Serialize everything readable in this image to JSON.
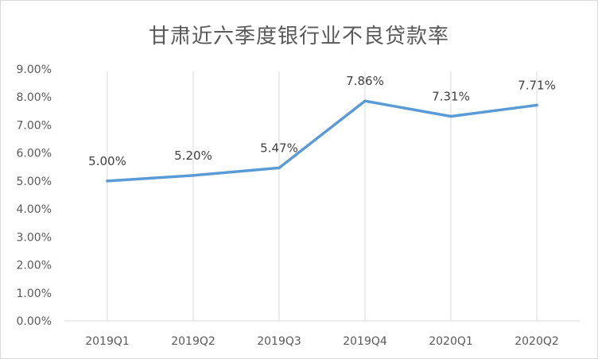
{
  "chart_data": {
    "type": "line",
    "title": "甘肃近六季度银行业不良贷款率",
    "categories": [
      "2019Q1",
      "2019Q2",
      "2019Q3",
      "2019Q4",
      "2020Q1",
      "2020Q2"
    ],
    "series": [
      {
        "values": [
          5.0,
          5.2,
          5.47,
          7.86,
          7.31,
          7.71
        ],
        "labels": [
          "5.00%",
          "5.20%",
          "5.47%",
          "7.86%",
          "7.31%",
          "7.71%"
        ],
        "color": "#5b9bd5"
      }
    ],
    "y_ticks": [
      0,
      1,
      2,
      3,
      4,
      5,
      6,
      7,
      8,
      9
    ],
    "y_tick_labels": [
      "0.00%",
      "1.00%",
      "2.00%",
      "3.00%",
      "4.00%",
      "5.00%",
      "6.00%",
      "7.00%",
      "8.00%",
      "9.00%"
    ],
    "ylim": [
      0,
      9
    ],
    "xlabel": "",
    "ylabel": "",
    "grid": "vertical",
    "legend": "none",
    "colors": {
      "line": "#5b9bd5",
      "grid": "#d9d9d9",
      "text": "#595959"
    }
  }
}
